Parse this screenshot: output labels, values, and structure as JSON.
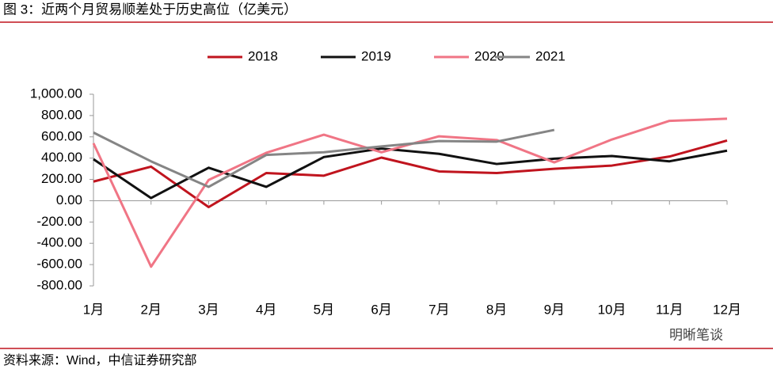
{
  "chart_data": {
    "type": "line",
    "title": "图 3：近两个月贸易顺差处于历史高位（亿美元）",
    "source": "资料来源：Wind，中信证券研究部",
    "watermark": "明晰笔谈",
    "categories": [
      "1月",
      "2月",
      "3月",
      "4月",
      "5月",
      "6月",
      "7月",
      "8月",
      "9月",
      "10月",
      "11月",
      "12月"
    ],
    "series": [
      {
        "name": "2018",
        "color": "#c0141e",
        "values": [
          180,
          320,
          -60,
          260,
          235,
          405,
          275,
          260,
          300,
          330,
          415,
          565
        ]
      },
      {
        "name": "2019",
        "color": "#111111",
        "values": [
          390,
          25,
          310,
          130,
          410,
          490,
          440,
          345,
          395,
          420,
          370,
          470
        ]
      },
      {
        "name": "2020",
        "color": "#f07585",
        "values": [
          540,
          -620,
          195,
          450,
          620,
          455,
          605,
          570,
          360,
          575,
          750,
          770
        ]
      },
      {
        "name": "2021",
        "color": "#858585",
        "values": [
          640,
          370,
          130,
          430,
          455,
          510,
          560,
          555,
          665,
          null,
          null,
          null
        ]
      }
    ],
    "ylim": [
      -800,
      1000
    ],
    "yticks": [
      {
        "value": 1000,
        "label": "1,000.00"
      },
      {
        "value": 800,
        "label": "800.00"
      },
      {
        "value": 600,
        "label": "600.00"
      },
      {
        "value": 400,
        "label": "400.00"
      },
      {
        "value": 200,
        "label": "200.00"
      },
      {
        "value": 0,
        "label": "0.00"
      },
      {
        "value": -200,
        "label": "-200.00"
      },
      {
        "value": -400,
        "label": "-400.00"
      },
      {
        "value": -600,
        "label": "-600.00"
      },
      {
        "value": -800,
        "label": "-800.00"
      }
    ],
    "legend": "top"
  }
}
